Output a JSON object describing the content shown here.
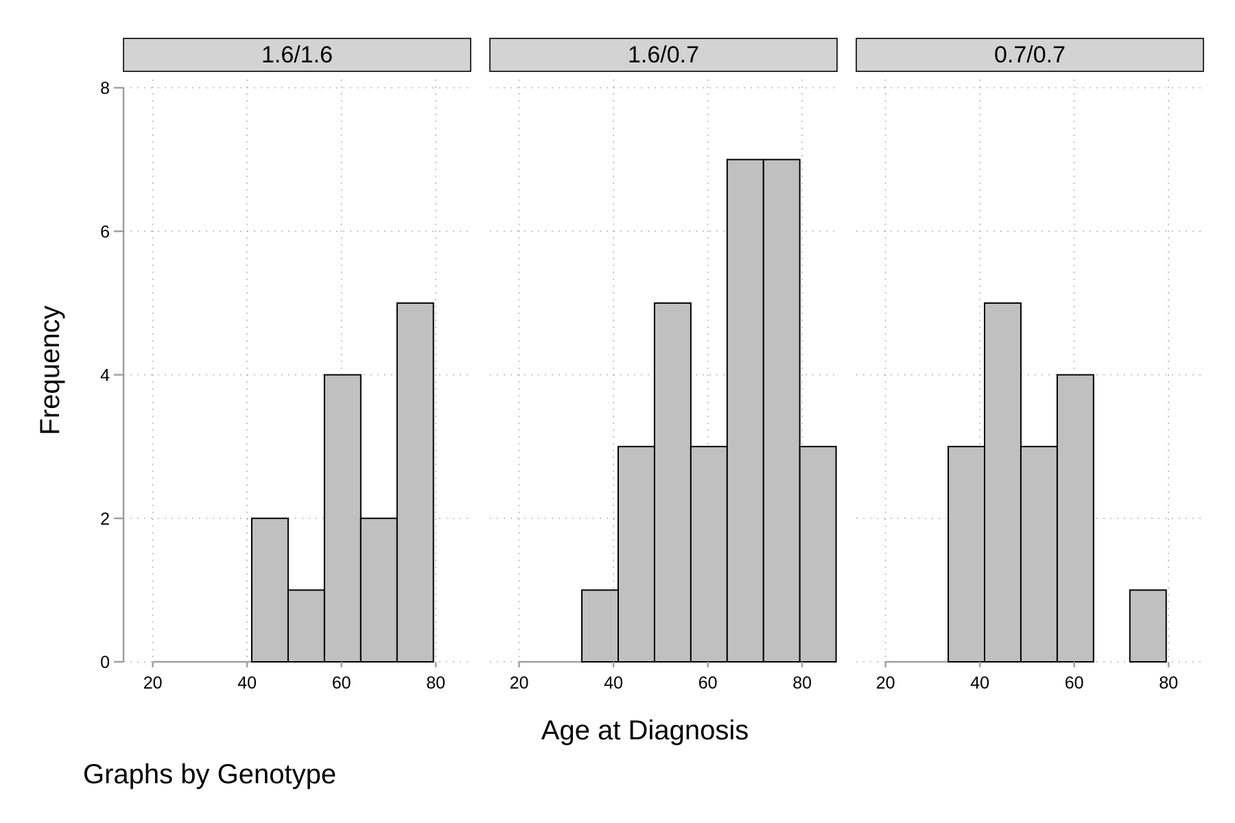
{
  "chart_data": {
    "type": "bar",
    "subtype": "histogram",
    "xlabel": "Age at Diagnosis",
    "ylabel": "Frequency",
    "note": "Graphs by Genotype",
    "x_ticks": [
      "20",
      "40",
      "60",
      "80"
    ],
    "y_ticks": [
      "0",
      "2",
      "4",
      "6",
      "8"
    ],
    "xlim": [
      17,
      90
    ],
    "ylim": [
      0,
      8
    ],
    "grid": true,
    "bar_color": "#c0c0c0",
    "panels": [
      {
        "label": "1.6/1.6",
        "bins": [
          {
            "from": 41,
            "to": 48.7,
            "count": 2
          },
          {
            "from": 48.7,
            "to": 56.4,
            "count": 1
          },
          {
            "from": 56.4,
            "to": 64.1,
            "count": 4
          },
          {
            "from": 64.1,
            "to": 71.8,
            "count": 2
          },
          {
            "from": 71.8,
            "to": 79.5,
            "count": 5
          }
        ]
      },
      {
        "label": "1.6/0.7",
        "bins": [
          {
            "from": 33.3,
            "to": 41,
            "count": 1
          },
          {
            "from": 41,
            "to": 48.7,
            "count": 3
          },
          {
            "from": 48.7,
            "to": 56.4,
            "count": 5
          },
          {
            "from": 56.4,
            "to": 64.1,
            "count": 3
          },
          {
            "from": 64.1,
            "to": 71.8,
            "count": 7
          },
          {
            "from": 71.8,
            "to": 79.5,
            "count": 7
          },
          {
            "from": 79.5,
            "to": 87.2,
            "count": 3
          }
        ]
      },
      {
        "label": "0.7/0.7",
        "bins": [
          {
            "from": 33.3,
            "to": 41,
            "count": 3
          },
          {
            "from": 41,
            "to": 48.7,
            "count": 5
          },
          {
            "from": 48.7,
            "to": 56.4,
            "count": 3
          },
          {
            "from": 56.4,
            "to": 64.1,
            "count": 4
          },
          {
            "from": 71.8,
            "to": 79.5,
            "count": 1
          }
        ]
      }
    ]
  }
}
